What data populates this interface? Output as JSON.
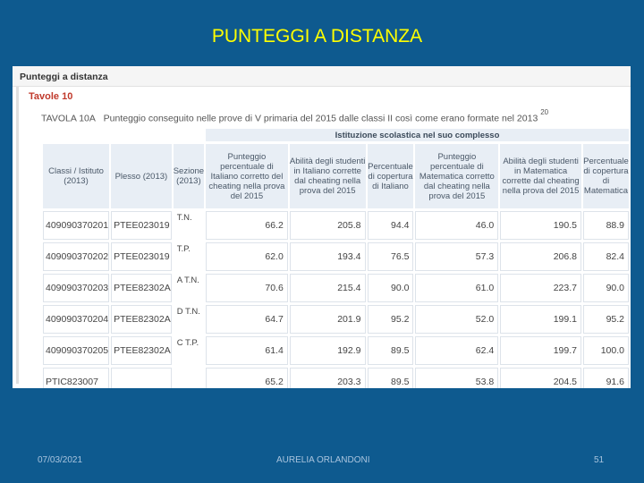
{
  "slide": {
    "title": "PUNTEGGI A DISTANZA"
  },
  "panel": {
    "header": "Punteggi a distanza",
    "section": "Tavole 10",
    "caption_label": "TAVOLA 10A",
    "caption_text": "Punteggio conseguito nelle prove di V primaria del 2015 dalle classi II così come erano formate nel 2013",
    "caption_sup": "20"
  },
  "table": {
    "group_header": "Istituzione scolastica nel suo complesso",
    "columns": [
      "Classi / Istituto (2013)",
      "Plesso (2013)",
      "Sezione (2013)",
      "Punteggio percentuale di Italiano corretto del cheating nella prova del 2015",
      "Abilità degli studenti in Italiano corrette dal cheating nella prova del 2015",
      "Percentuale di copertura di Italiano",
      "Punteggio percentuale di Matematica corretto dal cheating nella prova del 2015",
      "Abilità degli studenti in Matematica corrette dal cheating nella prova del 2015",
      "Percentuale di copertura di Matematica"
    ],
    "rows": [
      {
        "classe": "409090370201",
        "plesso": "PTEE023019",
        "sezione": "T.N.",
        "v1": "66.2",
        "v2": "205.8",
        "v3": "94.4",
        "v4": "46.0",
        "v5": "190.5",
        "v6": "88.9"
      },
      {
        "classe": "409090370202",
        "plesso": "PTEE023019",
        "sezione": "T.P.",
        "v1": "62.0",
        "v2": "193.4",
        "v3": "76.5",
        "v4": "57.3",
        "v5": "206.8",
        "v6": "82.4"
      },
      {
        "classe": "409090370203",
        "plesso": "PTEE82302A",
        "sezione": "A T.N.",
        "v1": "70.6",
        "v2": "215.4",
        "v3": "90.0",
        "v4": "61.0",
        "v5": "223.7",
        "v6": "90.0"
      },
      {
        "classe": "409090370204",
        "plesso": "PTEE82302A",
        "sezione": "D T.N.",
        "v1": "64.7",
        "v2": "201.9",
        "v3": "95.2",
        "v4": "52.0",
        "v5": "199.1",
        "v6": "95.2"
      },
      {
        "classe": "409090370205",
        "plesso": "PTEE82302A",
        "sezione": "C T.P.",
        "v1": "61.4",
        "v2": "192.9",
        "v3": "89.5",
        "v4": "62.4",
        "v5": "199.7",
        "v6": "100.0"
      },
      {
        "classe": "PTIC823007",
        "plesso": "",
        "sezione": "",
        "v1": "65.2",
        "v2": "203.3",
        "v3": "89.5",
        "v4": "53.8",
        "v5": "204.5",
        "v6": "91.6"
      }
    ]
  },
  "footer": {
    "date": "07/03/2021",
    "author": "AURELIA ORLANDONI",
    "page": "51"
  }
}
